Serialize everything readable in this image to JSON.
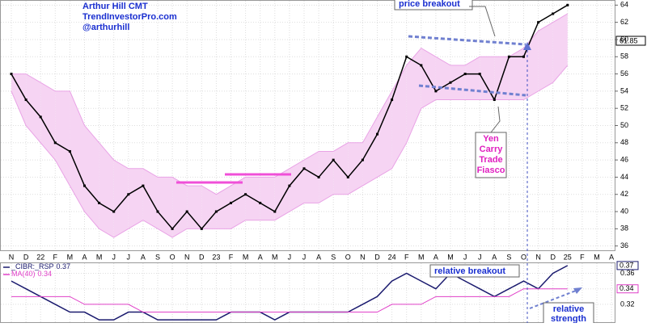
{
  "chart_data": [
    {
      "type": "line",
      "categories": [
        "N",
        "D",
        "22",
        "F",
        "M",
        "A",
        "M",
        "J",
        "J",
        "A",
        "S",
        "O",
        "N",
        "D",
        "23",
        "F",
        "M",
        "A",
        "M",
        "J",
        "J",
        "A",
        "S",
        "O",
        "N",
        "D",
        "24",
        "F",
        "M",
        "A",
        "M",
        "J",
        "J",
        "A",
        "S",
        "O",
        "N",
        "D",
        "25",
        "F",
        "M",
        "A"
      ],
      "series": [
        {
          "color": "#000000",
          "values": [
            56,
            53,
            51,
            48,
            47,
            43,
            41,
            40,
            42,
            43,
            40,
            38,
            40,
            38,
            40,
            41,
            42,
            41,
            40,
            43,
            45,
            44,
            46,
            44,
            46,
            49,
            53,
            58,
            57,
            54,
            55,
            56,
            56,
            53,
            58,
            58,
            62,
            63,
            64,
            null,
            null,
            null
          ]
        },
        {
          "color": "#e9a3e6",
          "values": [
            56,
            56,
            55,
            54,
            54,
            50,
            48,
            46,
            45,
            45,
            44,
            44,
            43,
            43,
            42,
            43,
            44,
            44,
            44,
            45,
            46,
            47,
            47,
            48,
            48,
            51,
            54,
            57,
            59,
            58,
            57,
            57,
            58,
            58,
            58,
            59,
            61,
            62,
            63,
            null,
            null,
            null
          ]
        },
        {
          "color": "#e9a3e6",
          "values": [
            54,
            50,
            48,
            46,
            43,
            40,
            38,
            37,
            38,
            39,
            38,
            37,
            38,
            38,
            38,
            38,
            39,
            39,
            39,
            40,
            41,
            41,
            42,
            42,
            43,
            44,
            45,
            48,
            52,
            53,
            53,
            53,
            53,
            53,
            53,
            53,
            54,
            55,
            57,
            null,
            null,
            null
          ]
        }
      ],
      "ylim": [
        35.5,
        64.5
      ],
      "yticks": [
        36,
        38,
        40,
        42,
        44,
        46,
        48,
        50,
        52,
        54,
        56,
        58,
        60,
        62,
        64
      ],
      "grid": true,
      "last_price": 61.85,
      "annotations": [
        "Arthur Hill CMT",
        "TrendInvestorPro.com",
        "@arthurhill",
        "price breakout",
        "Yen Carry Trade Fiasco"
      ]
    },
    {
      "type": "line",
      "series": [
        {
          "name": "_CIBR:_RSP",
          "color": "#1a1a6e",
          "values": [
            0.35,
            0.34,
            0.33,
            0.32,
            0.31,
            0.31,
            0.3,
            0.3,
            0.31,
            0.31,
            0.3,
            0.3,
            0.3,
            0.3,
            0.3,
            0.31,
            0.31,
            0.31,
            0.3,
            0.31,
            0.31,
            0.31,
            0.31,
            0.31,
            0.32,
            0.33,
            0.35,
            0.36,
            0.35,
            0.34,
            0.36,
            0.35,
            0.34,
            0.33,
            0.34,
            0.35,
            0.34,
            0.36,
            0.37,
            null,
            null,
            null
          ]
        },
        {
          "name": "MA(40)",
          "color": "#e040c8",
          "values": [
            0.33,
            0.33,
            0.33,
            0.33,
            0.33,
            0.32,
            0.32,
            0.32,
            0.32,
            0.31,
            0.31,
            0.31,
            0.31,
            0.31,
            0.31,
            0.31,
            0.31,
            0.31,
            0.31,
            0.31,
            0.31,
            0.31,
            0.31,
            0.31,
            0.31,
            0.31,
            0.32,
            0.32,
            0.32,
            0.33,
            0.33,
            0.33,
            0.33,
            0.33,
            0.33,
            0.34,
            0.34,
            0.34,
            0.34,
            null,
            null,
            null
          ]
        }
      ],
      "ylim": [
        0.296,
        0.373
      ],
      "yticks": [
        0.32,
        0.34,
        0.36
      ],
      "annotations": [
        "relative breakout",
        "relative strength"
      ]
    }
  ]
}
